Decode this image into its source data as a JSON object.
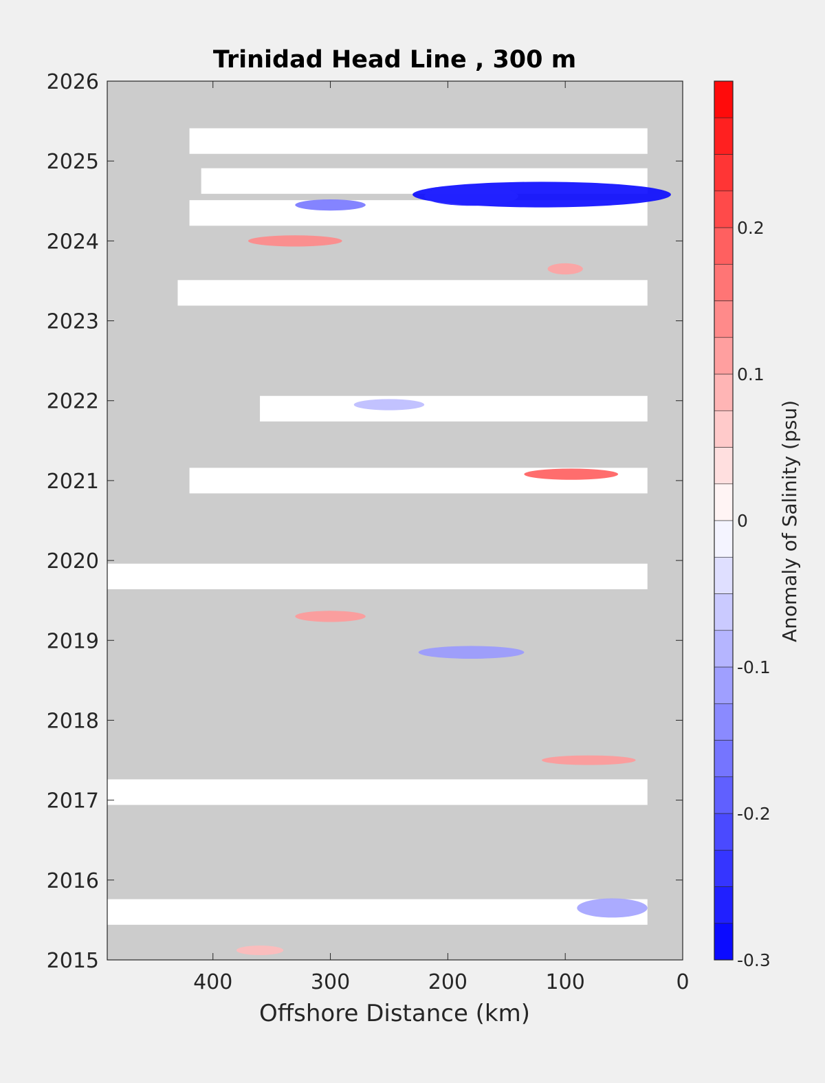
{
  "chart_data": {
    "type": "heatmap",
    "title": "Trinidad Head Line , 300 m",
    "xlabel": "Offshore Distance (km)",
    "ylabel": "",
    "colorbar_label": "Anomaly of Salinity (psu)",
    "xlim": [
      490,
      0
    ],
    "x_reversed": true,
    "ylim": [
      2015,
      2026
    ],
    "x_ticks": [
      "400",
      "300",
      "200",
      "100",
      "0"
    ],
    "x_tick_values": [
      400,
      300,
      200,
      100,
      0
    ],
    "y_ticks": [
      "2015",
      "2016",
      "2017",
      "2018",
      "2019",
      "2020",
      "2021",
      "2022",
      "2023",
      "2024",
      "2025",
      "2026"
    ],
    "y_tick_values": [
      2015,
      2016,
      2017,
      2018,
      2019,
      2020,
      2021,
      2022,
      2023,
      2024,
      2025,
      2026
    ],
    "colorbar_range": [
      -0.3,
      0.3
    ],
    "colorbar_levels": 24,
    "colorbar_ticks": [
      "-0.3",
      "-0.2",
      "-0.1",
      "0",
      "0.1",
      "0.2"
    ],
    "colorbar_tick_values": [
      -0.3,
      -0.2,
      -0.1,
      0,
      0.1,
      0.2
    ],
    "colors": {
      "negative": "#0000ff",
      "zero": "#ffffff",
      "positive": "#ff0000",
      "no_data": "#cccccc"
    },
    "data_rows": [
      {
        "year": 2025.25,
        "x_min": 30,
        "x_max": 420
      },
      {
        "year": 2024.75,
        "x_min": 30,
        "x_max": 410
      },
      {
        "year": 2024.35,
        "x_min": 30,
        "x_max": 420
      },
      {
        "year": 2023.35,
        "x_min": 30,
        "x_max": 430
      },
      {
        "year": 2021.9,
        "x_min": 30,
        "x_max": 360
      },
      {
        "year": 2021.0,
        "x_min": 30,
        "x_max": 420
      },
      {
        "year": 2019.8,
        "x_min": 30,
        "x_max": 490
      },
      {
        "year": 2017.1,
        "x_min": 30,
        "x_max": 490
      },
      {
        "year": 2015.6,
        "x_min": 30,
        "x_max": 490
      }
    ],
    "anomalies": [
      {
        "x": 120,
        "year": 2024.58,
        "value": -0.29,
        "rx": 110,
        "ry": 0.16
      },
      {
        "x": 180,
        "year": 2024.56,
        "value": -0.26,
        "rx": 40,
        "ry": 0.12
      },
      {
        "x": 300,
        "year": 2024.45,
        "value": -0.16,
        "rx": 30,
        "ry": 0.07
      },
      {
        "x": 330,
        "year": 2024.0,
        "value": 0.14,
        "rx": 40,
        "ry": 0.07
      },
      {
        "x": 100,
        "year": 2023.65,
        "value": 0.11,
        "rx": 15,
        "ry": 0.07
      },
      {
        "x": 95,
        "year": 2021.08,
        "value": 0.19,
        "rx": 40,
        "ry": 0.07
      },
      {
        "x": 250,
        "year": 2021.95,
        "value": -0.08,
        "rx": 30,
        "ry": 0.07
      },
      {
        "x": 300,
        "year": 2019.3,
        "value": 0.12,
        "rx": 30,
        "ry": 0.07
      },
      {
        "x": 180,
        "year": 2018.85,
        "value": -0.12,
        "rx": 45,
        "ry": 0.08
      },
      {
        "x": 80,
        "year": 2017.5,
        "value": 0.12,
        "rx": 40,
        "ry": 0.06
      },
      {
        "x": 60,
        "year": 2015.65,
        "value": -0.11,
        "rx": 30,
        "ry": 0.12
      },
      {
        "x": 360,
        "year": 2015.12,
        "value": 0.08,
        "rx": 20,
        "ry": 0.06
      }
    ]
  }
}
